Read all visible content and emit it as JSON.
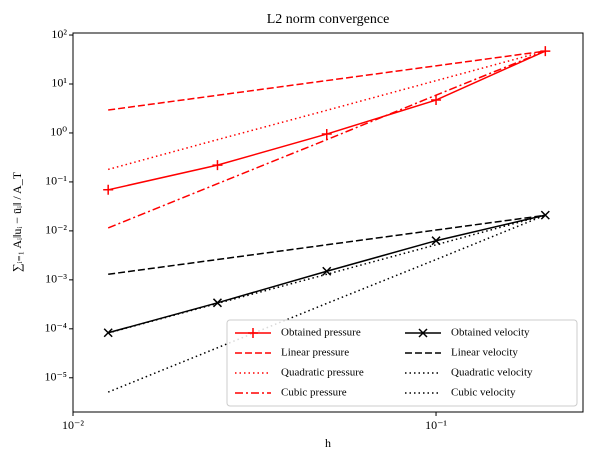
{
  "chart_data": {
    "type": "line",
    "title": "L2 norm convergence",
    "x_label": "h",
    "y_label": "∑ᵢ₌₁ Aᵢ‖uᵢ − ūᵢ‖ / A_T",
    "x": [
      0.0125,
      0.025,
      0.05,
      0.1,
      0.2
    ],
    "xscale": "log",
    "yscale": "log",
    "xlim": [
      0.01,
      0.254
    ],
    "ylim": [
      2e-06,
      110
    ],
    "xticks": [
      {
        "value": 0.01,
        "label": "10⁻²"
      },
      {
        "value": 0.1,
        "label": "10⁻¹"
      }
    ],
    "yticks": [
      {
        "value": 1e-05,
        "label": "10⁻⁵"
      },
      {
        "value": 0.0001,
        "label": "10⁻⁴"
      },
      {
        "value": 0.001,
        "label": "10⁻³"
      },
      {
        "value": 0.01,
        "label": "10⁻²"
      },
      {
        "value": 0.1,
        "label": "10⁻¹"
      },
      {
        "value": 1,
        "label": "10⁰"
      },
      {
        "value": 10,
        "label": "10¹"
      },
      {
        "value": 100,
        "label": "10²"
      }
    ],
    "legend_loc": "lower right",
    "legend_ncol": 2,
    "series": [
      {
        "name": "Obtained pressure",
        "color": "#ff0000",
        "linestyle": "solid",
        "marker": "plus",
        "values": [
          0.069,
          0.22,
          0.95,
          4.7,
          47
        ]
      },
      {
        "name": "Linear pressure",
        "color": "#ff0000",
        "linestyle": "dashed",
        "marker": "none",
        "values": [
          2.94,
          5.88,
          11.75,
          23.5,
          47
        ]
      },
      {
        "name": "Quadratic pressure",
        "color": "#ff0000",
        "linestyle": "dotted",
        "marker": "none",
        "values": [
          0.18,
          0.73,
          2.9,
          11.7,
          47
        ]
      },
      {
        "name": "Cubic pressure",
        "color": "#ff0000",
        "linestyle": "dashdot",
        "marker": "none",
        "values": [
          0.0115,
          0.092,
          0.73,
          5.9,
          47
        ]
      },
      {
        "name": "Obtained velocity",
        "color": "#000000",
        "linestyle": "solid",
        "marker": "x",
        "values": [
          8.3e-05,
          0.00034,
          0.0015,
          0.0063,
          0.021
        ]
      },
      {
        "name": "Linear velocity",
        "color": "#000000",
        "linestyle": "dashed",
        "marker": "none",
        "values": [
          0.0013,
          0.0026,
          0.0052,
          0.0104,
          0.0208
        ]
      },
      {
        "name": "Quadratic velocity",
        "color": "#000000",
        "linestyle": "dotted",
        "marker": "none",
        "values": [
          8.2e-05,
          0.00033,
          0.0013,
          0.0052,
          0.021
        ]
      },
      {
        "name": "Cubic velocity",
        "color": "#000000",
        "linestyle": "dotted",
        "marker": "none",
        "values": [
          5.1e-06,
          4.1e-05,
          0.00033,
          0.0026,
          0.021
        ]
      }
    ]
  }
}
